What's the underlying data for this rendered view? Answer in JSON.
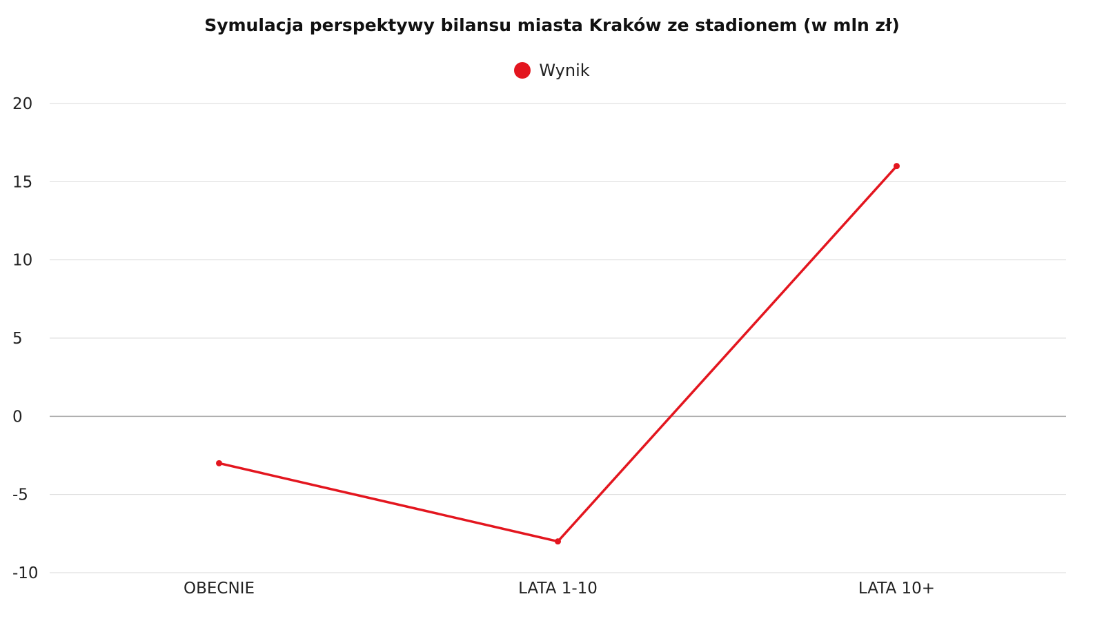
{
  "chart_data": {
    "type": "line",
    "title": "Symulacja perspektywy bilansu miasta Kraków ze stadionem (w mln zł)",
    "categories": [
      "OBECNIE",
      "LATA 1-10",
      "LATA 10+"
    ],
    "series": [
      {
        "name": "Wynik",
        "values": [
          -3,
          -8,
          16
        ],
        "color": "#e3161f"
      }
    ],
    "ylim": [
      -10,
      20
    ],
    "yticks": [
      "20",
      "15",
      "10",
      "5",
      "0",
      "-5",
      "-10"
    ],
    "ytick_values": [
      20,
      15,
      10,
      5,
      0,
      -5,
      -10
    ],
    "grid": true,
    "legend_position": "top-center",
    "gridline_color": "#d9d9d9",
    "zeroline_color": "#a6a6a6"
  }
}
